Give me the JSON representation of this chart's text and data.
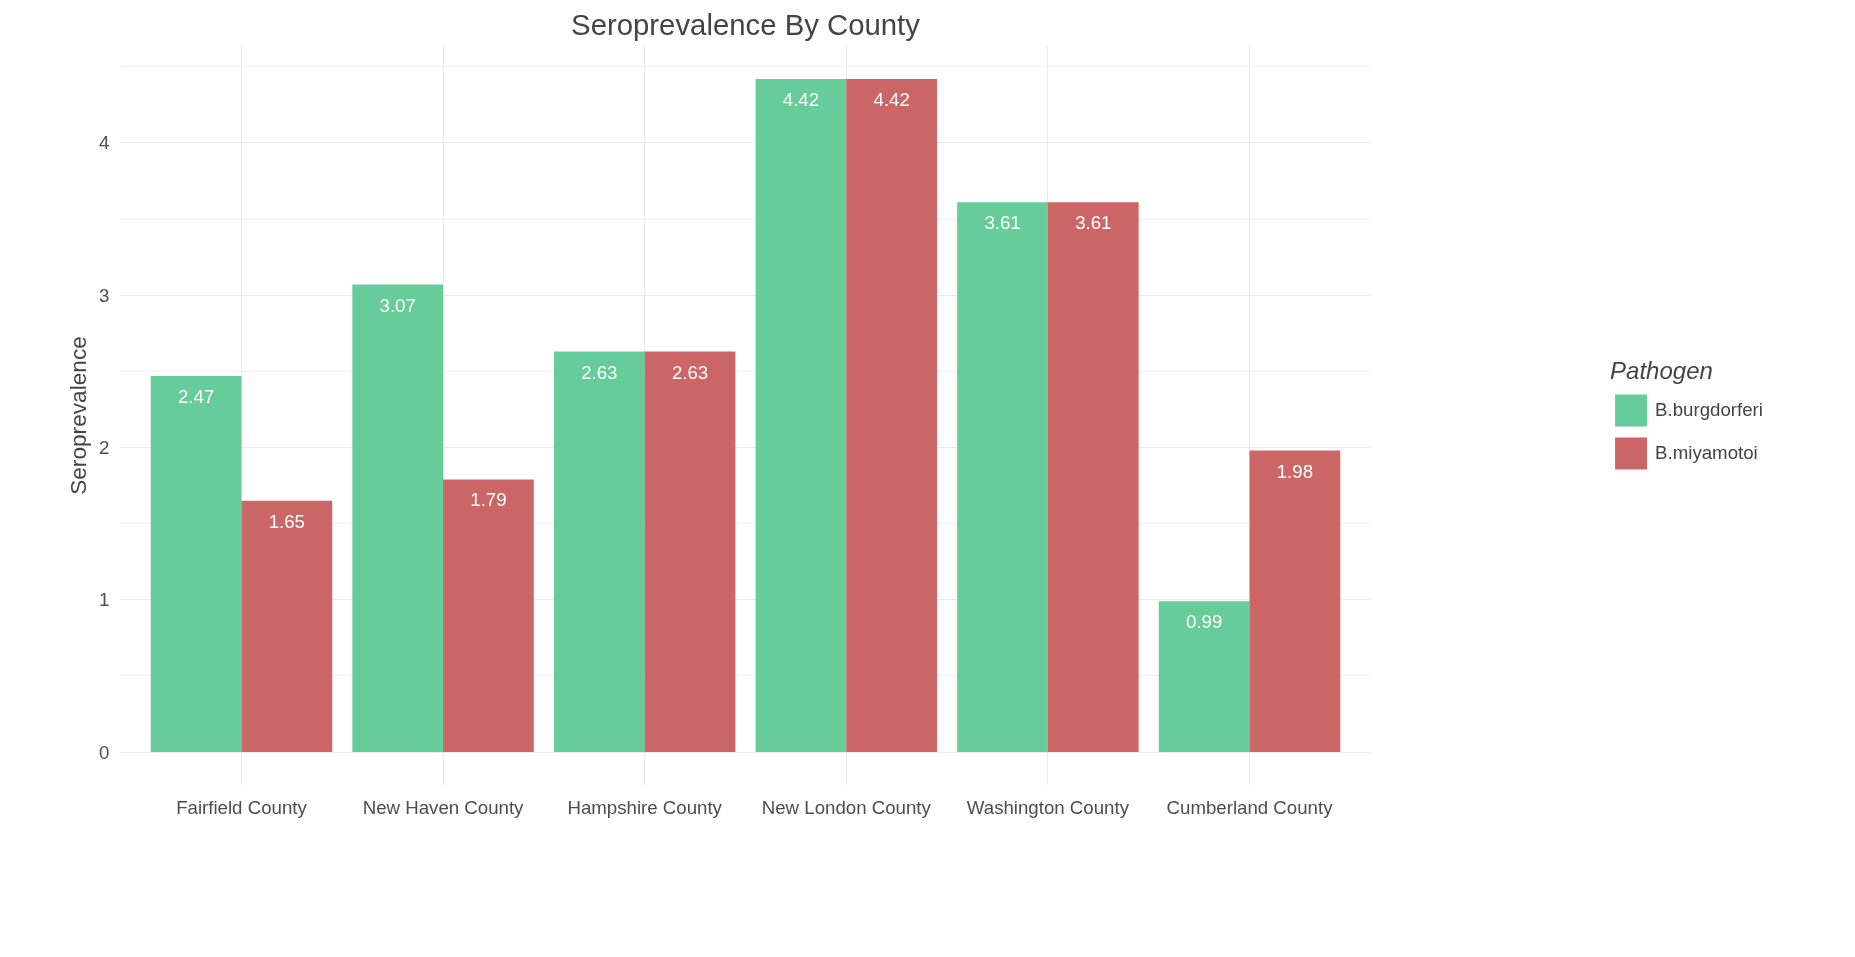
{
  "chart_data": {
    "type": "bar",
    "title": "Seroprevalence By County",
    "ylabel": "Seroprevalence",
    "legend_title": "Pathogen",
    "categories": [
      "Fairfield County",
      "New Haven County",
      "Hampshire County",
      "New London County",
      "Washington County",
      "Cumberland County"
    ],
    "series": [
      {
        "name": "B.burgdorferi",
        "color": "#66cc99",
        "values": [
          2.47,
          3.07,
          2.63,
          4.42,
          3.61,
          0.99
        ]
      },
      {
        "name": "B.miyamotoi",
        "color": "#cc6666",
        "values": [
          1.65,
          1.79,
          2.63,
          4.42,
          3.61,
          1.98
        ]
      }
    ],
    "ylim": [
      -0.22,
      4.64
    ],
    "yticks": [
      0,
      1,
      2,
      3,
      4
    ],
    "grid": true,
    "legend": "right",
    "data_labels": true
  }
}
